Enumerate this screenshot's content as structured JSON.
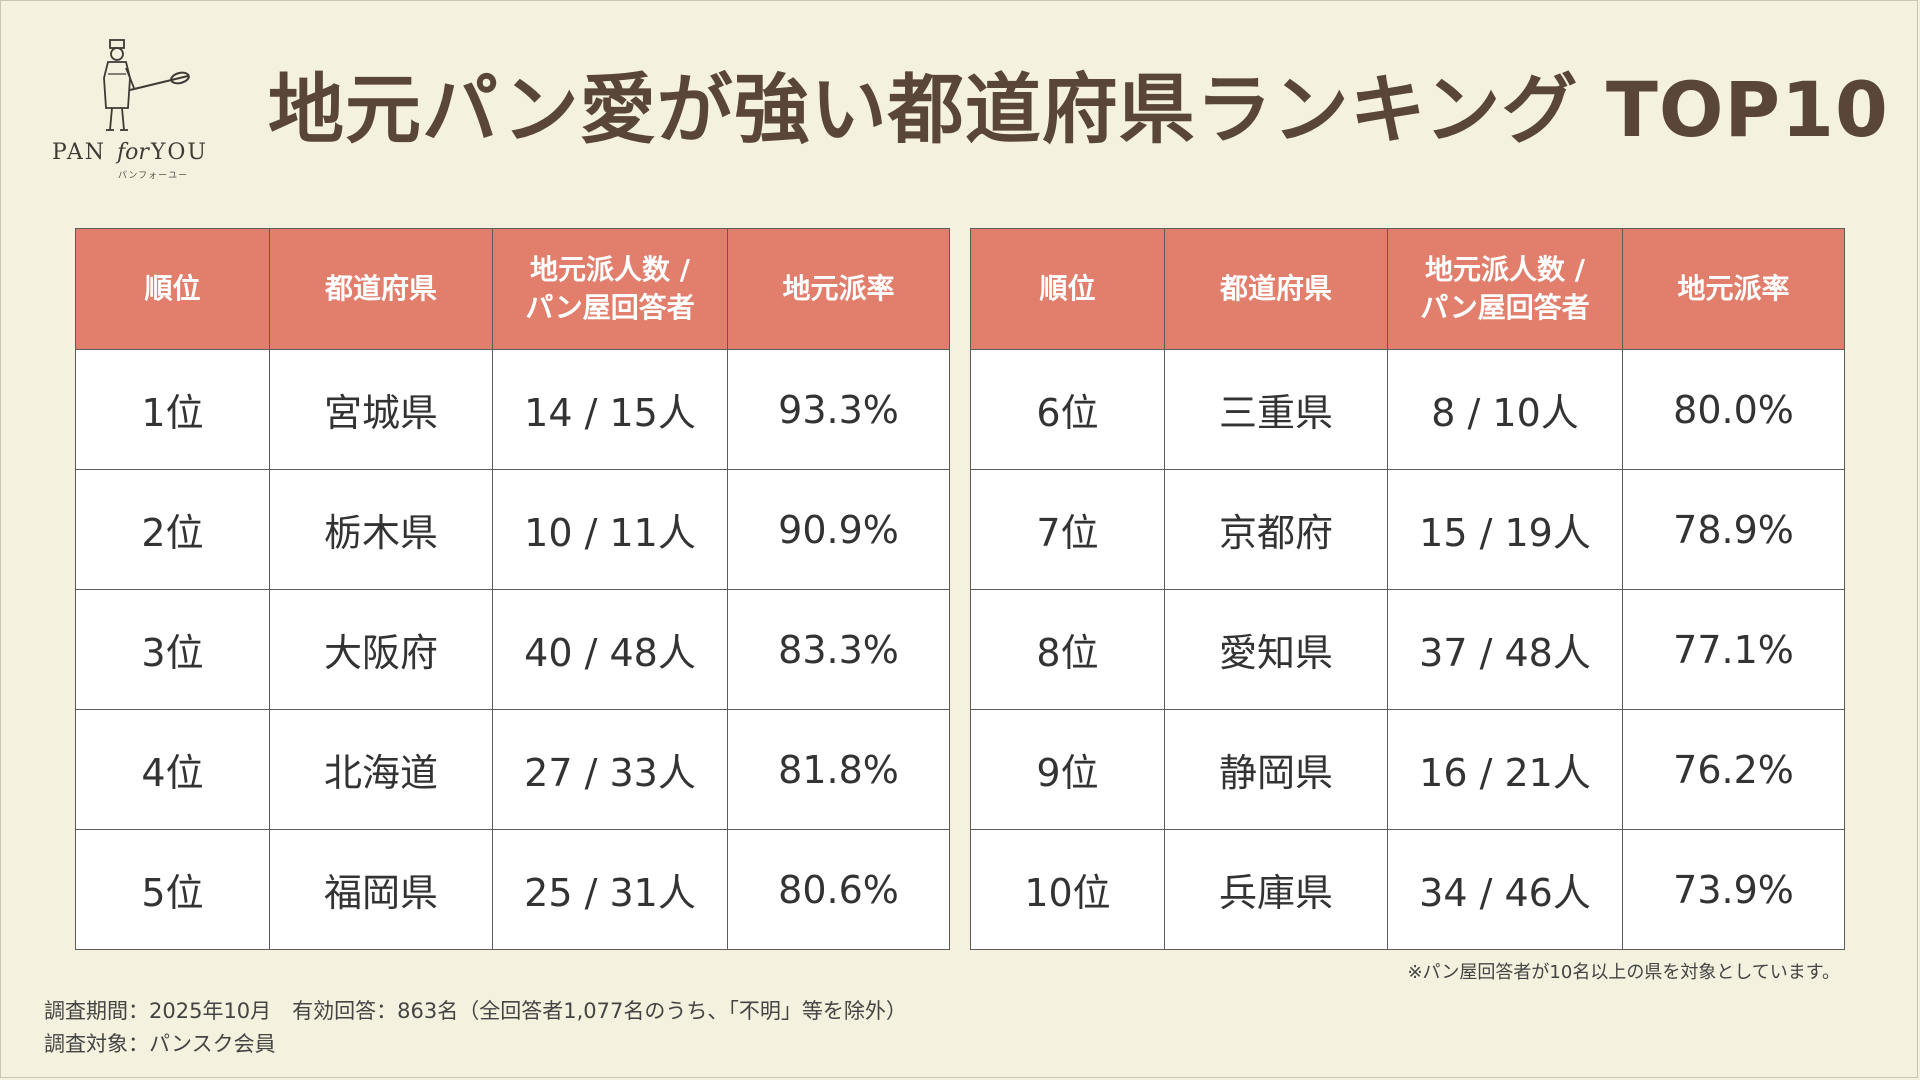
{
  "logo": {
    "icon": "baker-icon",
    "text_left": "PAN",
    "text_for": "for",
    "text_right": "YOU",
    "sub": "パンフォーユー"
  },
  "title": "地元パン愛が強い都道府県ランキング TOP10",
  "table": {
    "headers": {
      "rank": "順位",
      "prefecture": "都道府県",
      "count_line1": "地元派人数 /",
      "count_line2": "パン屋回答者",
      "rate": "地元派率"
    },
    "left_rows": [
      {
        "rank": "1位",
        "prefecture": "宮城県",
        "count": "14 / 15人",
        "rate": "93.3%"
      },
      {
        "rank": "2位",
        "prefecture": "栃木県",
        "count": "10 / 11人",
        "rate": "90.9%"
      },
      {
        "rank": "3位",
        "prefecture": "大阪府",
        "count": "40 / 48人",
        "rate": "83.3%"
      },
      {
        "rank": "4位",
        "prefecture": "北海道",
        "count": "27 / 33人",
        "rate": "81.8%"
      },
      {
        "rank": "5位",
        "prefecture": "福岡県",
        "count": "25 / 31人",
        "rate": "80.6%"
      }
    ],
    "right_rows": [
      {
        "rank": "6位",
        "prefecture": "三重県",
        "count": "8 / 10人",
        "rate": "80.0%"
      },
      {
        "rank": "7位",
        "prefecture": "京都府",
        "count": "15 / 19人",
        "rate": "78.9%"
      },
      {
        "rank": "8位",
        "prefecture": "愛知県",
        "count": "37 / 48人",
        "rate": "77.1%"
      },
      {
        "rank": "9位",
        "prefecture": "静岡県",
        "count": "16 / 21人",
        "rate": "76.2%"
      },
      {
        "rank": "10位",
        "prefecture": "兵庫県",
        "count": "34 / 46人",
        "rate": "73.9%"
      }
    ]
  },
  "note": "※パン屋回答者が10名以上の県を対象としています。",
  "footer": {
    "line1": "調査期間：2025年10月　有効回答：863名（全回答者1,077名のうち、「不明」等を除外）",
    "line2": "調査対象：パンスク会員"
  },
  "colors": {
    "background": "#f4f1de",
    "header": "#e27e6c",
    "title": "#5a4638"
  }
}
